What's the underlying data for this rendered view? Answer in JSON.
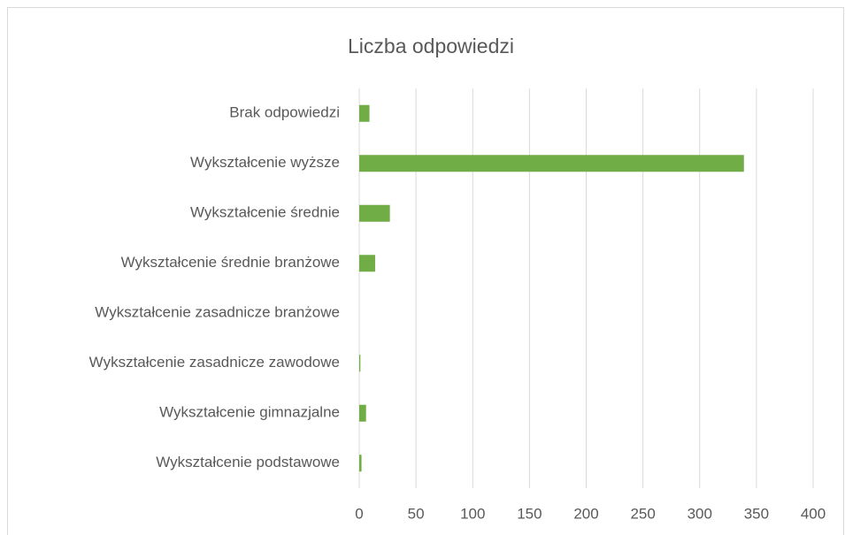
{
  "chart_data": {
    "type": "bar",
    "orientation": "horizontal",
    "title": "Liczba odpowiedzi",
    "categories": [
      "Brak odpowiedzi ",
      "Wykształcenie wyższe",
      "Wykształcenie średnie",
      "Wykształcenie średnie branżowe",
      "Wykształcenie zasadnicze branżowe",
      "Wykształcenie zasadnicze zawodowe",
      "Wykształcenie gimnazjalne",
      "Wykształcenie podstawowe"
    ],
    "values": [
      9,
      339,
      27,
      14,
      0,
      1,
      6,
      2
    ],
    "color": "#70ad47",
    "xlim": [
      0,
      400
    ],
    "xticks": [
      0,
      50,
      100,
      150,
      200,
      250,
      300,
      350,
      400
    ],
    "grid": true
  }
}
